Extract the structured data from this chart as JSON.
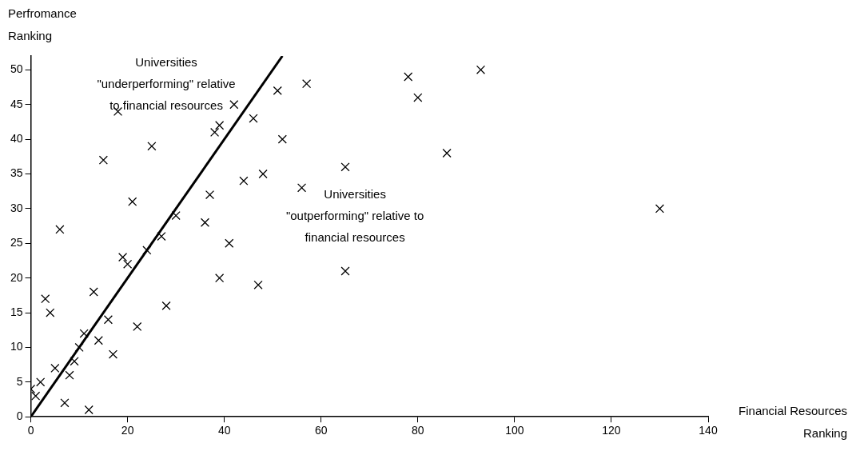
{
  "chart_data": {
    "type": "scatter",
    "xlabel": "Financial Resources\nRanking",
    "ylabel": "Perfromance\nRanking",
    "annotations": [
      "Universities\n\"underperforming\" relative\nto financial resources",
      "Universities\n\"outperforming\" relative to\nfinancial resources"
    ],
    "series": [
      {
        "color": "#000000",
        "marker": "cross",
        "x": [
          93,
          78,
          80,
          57,
          51,
          42,
          18,
          46,
          39,
          38,
          52,
          25,
          86,
          65,
          48,
          44,
          15,
          56,
          37,
          21,
          30,
          36,
          6,
          27,
          41,
          24,
          19,
          20,
          39,
          47,
          65,
          130,
          13,
          3,
          4,
          28,
          16,
          22,
          11,
          14,
          10,
          17,
          9,
          5,
          8,
          2,
          0,
          1,
          7,
          12
        ],
        "values": [
          50,
          49,
          46,
          48,
          47,
          45,
          44,
          43,
          42,
          41,
          40,
          39,
          38,
          36,
          35,
          34,
          37,
          33,
          32,
          31,
          29,
          28,
          27,
          26,
          25,
          24,
          23,
          22,
          20,
          19,
          21,
          30,
          18,
          17,
          15,
          16,
          14,
          13,
          12,
          11,
          10,
          9,
          8,
          7,
          6,
          5,
          4,
          3,
          2,
          1
        ]
      },
      {
        "type": "line",
        "color": "#000000",
        "line_style": "solid",
        "marker": "none",
        "x": [
          0,
          52
        ],
        "values": [
          0,
          52
        ]
      }
    ],
    "xlim": [
      0,
      140
    ],
    "xticks": [
      0,
      20,
      40,
      60,
      80,
      100,
      120,
      140
    ],
    "ylim": [
      0,
      52
    ],
    "yticks": [
      0,
      5,
      10,
      15,
      20,
      25,
      30,
      35,
      40,
      45,
      50
    ],
    "grid": false,
    "legend": false
  }
}
